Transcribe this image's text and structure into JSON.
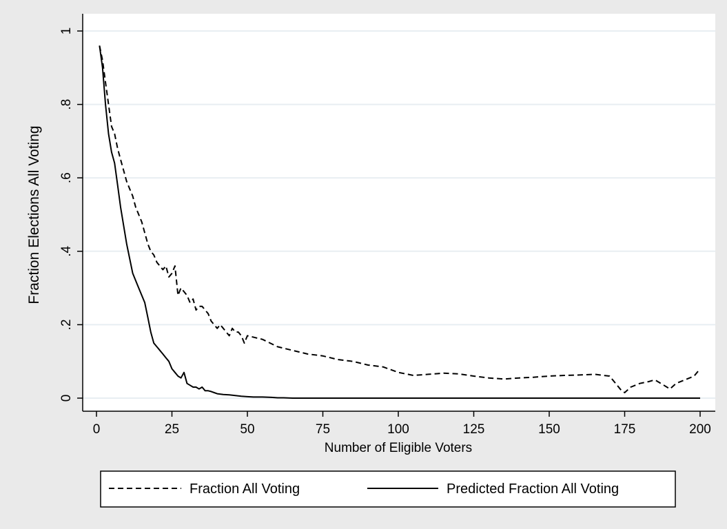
{
  "chart_data": {
    "type": "line",
    "xlabel": "Number of Eligible Voters",
    "ylabel": "Fraction Elections All Voting",
    "xlim": [
      0,
      200
    ],
    "ylim": [
      0,
      1
    ],
    "x_ticks": [
      0,
      25,
      50,
      75,
      100,
      125,
      150,
      175,
      200
    ],
    "x_tick_labels": [
      "0",
      "25",
      "50",
      "75",
      "100",
      "125",
      "150",
      "175",
      "200"
    ],
    "y_ticks": [
      0,
      0.2,
      0.4,
      0.6,
      0.8,
      1
    ],
    "y_tick_labels": [
      "0",
      ".2",
      ".4",
      ".6",
      ".8",
      "1"
    ],
    "grid": "horizontal",
    "legend_position": "bottom",
    "series": [
      {
        "name": "Fraction All Voting",
        "style": "dashed",
        "color": "#000000",
        "x": [
          1,
          2,
          3,
          4,
          5,
          6,
          7,
          8,
          9,
          10,
          11,
          12,
          13,
          14,
          15,
          16,
          17,
          18,
          19,
          20,
          21,
          22,
          23,
          24,
          25,
          26,
          27,
          28,
          29,
          30,
          31,
          32,
          33,
          34,
          35,
          36,
          37,
          38,
          39,
          40,
          41,
          42,
          43,
          44,
          45,
          46,
          47,
          48,
          49,
          50,
          55,
          60,
          65,
          70,
          75,
          80,
          85,
          90,
          95,
          100,
          105,
          110,
          115,
          120,
          125,
          130,
          135,
          140,
          145,
          150,
          155,
          160,
          165,
          170,
          172,
          174,
          175,
          177,
          180,
          183,
          185,
          188,
          190,
          192,
          195,
          198,
          200
        ],
        "y": [
          0.96,
          0.92,
          0.86,
          0.8,
          0.74,
          0.72,
          0.68,
          0.65,
          0.62,
          0.59,
          0.57,
          0.55,
          0.52,
          0.5,
          0.48,
          0.45,
          0.42,
          0.4,
          0.39,
          0.37,
          0.36,
          0.35,
          0.36,
          0.33,
          0.34,
          0.36,
          0.28,
          0.3,
          0.29,
          0.28,
          0.26,
          0.27,
          0.24,
          0.25,
          0.25,
          0.24,
          0.23,
          0.21,
          0.2,
          0.19,
          0.2,
          0.19,
          0.18,
          0.17,
          0.19,
          0.18,
          0.18,
          0.17,
          0.15,
          0.17,
          0.16,
          0.14,
          0.13,
          0.12,
          0.115,
          0.105,
          0.1,
          0.09,
          0.085,
          0.07,
          0.062,
          0.065,
          0.068,
          0.066,
          0.06,
          0.055,
          0.052,
          0.055,
          0.057,
          0.06,
          0.062,
          0.063,
          0.065,
          0.06,
          0.04,
          0.02,
          0.015,
          0.03,
          0.04,
          0.045,
          0.05,
          0.035,
          0.025,
          0.04,
          0.05,
          0.06,
          0.08
        ]
      },
      {
        "name": "Predicted Fraction All Voting",
        "style": "solid",
        "color": "#000000",
        "x": [
          1,
          2,
          3,
          4,
          5,
          6,
          7,
          8,
          9,
          10,
          11,
          12,
          13,
          14,
          15,
          16,
          17,
          18,
          19,
          20,
          21,
          22,
          23,
          24,
          25,
          26,
          27,
          28,
          29,
          30,
          31,
          32,
          33,
          34,
          35,
          36,
          37,
          38,
          39,
          40,
          42,
          44,
          46,
          48,
          50,
          52,
          55,
          58,
          60,
          62,
          65,
          70,
          80,
          100,
          125,
          150,
          175,
          200
        ],
        "y": [
          0.96,
          0.9,
          0.8,
          0.72,
          0.67,
          0.64,
          0.58,
          0.52,
          0.47,
          0.42,
          0.38,
          0.34,
          0.32,
          0.3,
          0.28,
          0.26,
          0.22,
          0.18,
          0.15,
          0.14,
          0.13,
          0.12,
          0.11,
          0.1,
          0.08,
          0.07,
          0.06,
          0.055,
          0.07,
          0.04,
          0.035,
          0.03,
          0.03,
          0.025,
          0.03,
          0.02,
          0.02,
          0.018,
          0.015,
          0.012,
          0.01,
          0.009,
          0.007,
          0.005,
          0.004,
          0.003,
          0.003,
          0.002,
          0.001,
          0.001,
          0,
          0,
          0,
          0,
          0,
          0,
          0,
          0
        ]
      }
    ]
  }
}
